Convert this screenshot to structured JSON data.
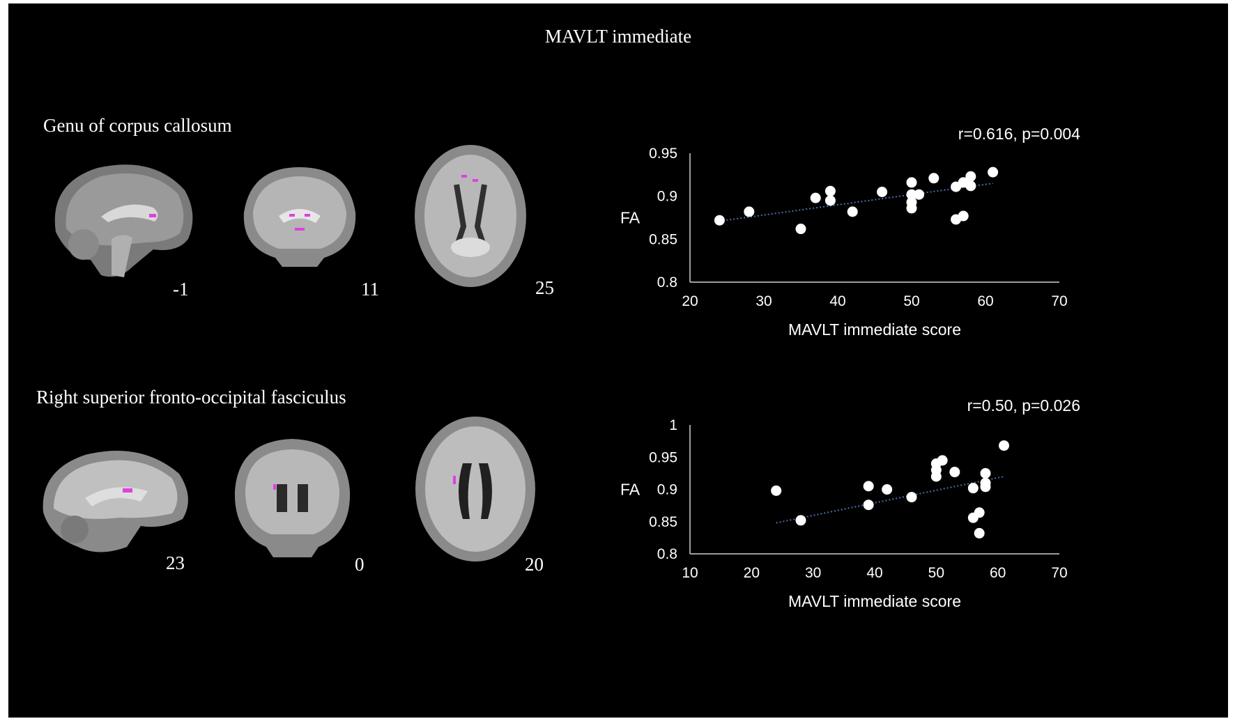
{
  "figure": {
    "title": "MAVLT  immediate",
    "panels": [
      {
        "region": "Genu of corpus callosum",
        "slices": [
          "-1",
          "11",
          "25"
        ],
        "stats": "r=0.616, p=0.004"
      },
      {
        "region": "Right superior fronto-occipital fasciculus",
        "slices": [
          "23",
          "0",
          "20"
        ],
        "stats": "r=0.50, p=0.026"
      }
    ]
  },
  "colors": {
    "background": "#000000",
    "text": "#ffffff",
    "point": "#ffffff",
    "trendline": "#4f6fb0",
    "highlight": "#e040e0"
  },
  "chart_data": [
    {
      "type": "scatter",
      "xlabel": "MAVLT  immediate score",
      "ylabel": "FA",
      "xlim": [
        20,
        70
      ],
      "ylim": [
        0.8,
        0.95
      ],
      "xticks": [
        "20",
        "30",
        "40",
        "50",
        "60",
        "70"
      ],
      "yticks": [
        "0.8",
        "0.85",
        "0.9",
        "0.95"
      ],
      "annotation": "r=0.616, p=0.004",
      "points": [
        [
          24,
          0.872
        ],
        [
          28,
          0.882
        ],
        [
          35,
          0.862
        ],
        [
          37,
          0.898
        ],
        [
          39,
          0.906
        ],
        [
          39,
          0.895
        ],
        [
          42,
          0.882
        ],
        [
          46,
          0.905
        ],
        [
          50,
          0.916
        ],
        [
          50,
          0.902
        ],
        [
          50,
          0.893
        ],
        [
          50,
          0.886
        ],
        [
          51,
          0.902
        ],
        [
          53,
          0.921
        ],
        [
          56,
          0.911
        ],
        [
          56,
          0.873
        ],
        [
          57,
          0.916
        ],
        [
          57,
          0.877
        ],
        [
          58,
          0.923
        ],
        [
          58,
          0.912
        ],
        [
          61,
          0.928
        ]
      ],
      "trendline": {
        "x1": 24,
        "y1": 0.871,
        "x2": 61,
        "y2": 0.915
      },
      "grid": false
    },
    {
      "type": "scatter",
      "xlabel": "MAVLT immediate score",
      "ylabel": "FA",
      "xlim": [
        10,
        70
      ],
      "ylim": [
        0.8,
        1.0
      ],
      "xticks": [
        "10",
        "20",
        "30",
        "40",
        "50",
        "60",
        "70"
      ],
      "yticks": [
        "0.8",
        "0.85",
        "0.9",
        "0.95",
        "1"
      ],
      "annotation": "r=0.50, p=0.026",
      "points": [
        [
          24,
          0.898
        ],
        [
          28,
          0.852
        ],
        [
          39,
          0.905
        ],
        [
          39,
          0.876
        ],
        [
          42,
          0.9
        ],
        [
          46,
          0.888
        ],
        [
          50,
          0.94
        ],
        [
          50,
          0.93
        ],
        [
          50,
          0.92
        ],
        [
          51,
          0.945
        ],
        [
          53,
          0.927
        ],
        [
          56,
          0.902
        ],
        [
          56,
          0.856
        ],
        [
          57,
          0.864
        ],
        [
          57,
          0.832
        ],
        [
          58,
          0.925
        ],
        [
          58,
          0.91
        ],
        [
          58,
          0.904
        ],
        [
          61,
          0.968
        ]
      ],
      "trendline": {
        "x1": 24,
        "y1": 0.848,
        "x2": 61,
        "y2": 0.92
      },
      "grid": false
    }
  ]
}
